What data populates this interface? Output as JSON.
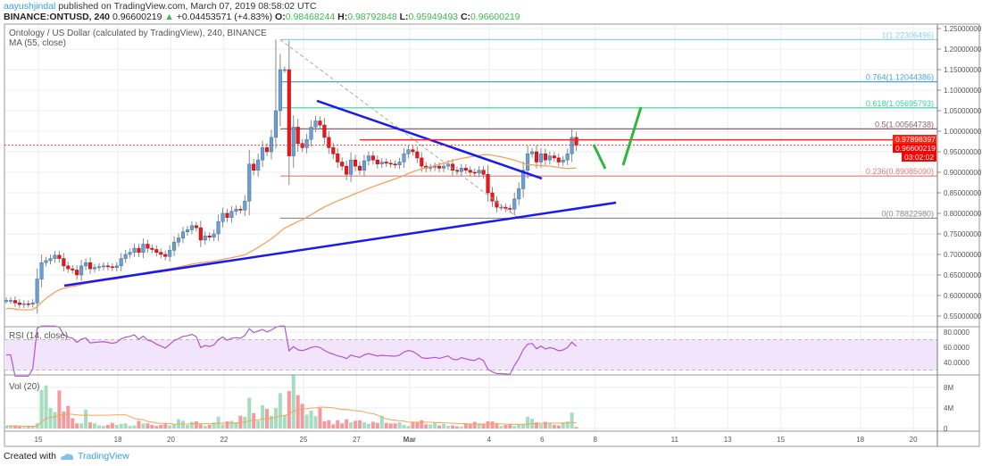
{
  "header": {
    "author": "aayushjindal",
    "published": "published on TradingView.com, March 07, 2019 08:58:02 UTC",
    "symbol": "BINANCE:ONTUSD, 240",
    "last": "0.96600219",
    "change": "+0.04453571 (+4.83%)",
    "o_label": "O:",
    "o": "0.98468244",
    "h_label": "H:",
    "h": "0.98792848",
    "l_label": "L:",
    "l": "0.95949493",
    "c_label": "C:",
    "c": "0.96600219"
  },
  "legend": {
    "title": "Ontology / US Dollar (calculated by TradingView), 240, BINANCE",
    "ma": "MA (55, close)",
    "rsi": "RSI (14, close)",
    "vol": "Vol (20)"
  },
  "price_axis": [
    "1.25000000",
    "1.20000000",
    "1.15000000",
    "1.10000000",
    "1.05000000",
    "1.00000000",
    "0.95000000",
    "0.90000000",
    "0.85000000",
    "0.80000000",
    "0.75000000",
    "0.70000000",
    "0.65000000",
    "0.60000000",
    "0.55000000"
  ],
  "rsi_axis": [
    "80.0000",
    "60.0000",
    "40.0000"
  ],
  "vol_axis": [
    "8M",
    "4M",
    "0"
  ],
  "date_axis": [
    {
      "label": "15",
      "date": "2019-02-15"
    },
    {
      "label": "18",
      "date": "2019-02-18"
    },
    {
      "label": "20",
      "date": "2019-02-20"
    },
    {
      "label": "22",
      "date": "2019-02-22"
    },
    {
      "label": "25",
      "date": "2019-02-25"
    },
    {
      "label": "27",
      "date": "2019-02-27"
    },
    {
      "label": "Mar",
      "date": "2019-03-01"
    },
    {
      "label": "4",
      "date": "2019-03-04"
    },
    {
      "label": "6",
      "date": "2019-03-06"
    },
    {
      "label": "8",
      "date": "2019-03-08"
    },
    {
      "label": "11",
      "date": "2019-03-11"
    },
    {
      "label": "13",
      "date": "2019-03-13"
    },
    {
      "label": "15",
      "date": "2019-03-15"
    },
    {
      "label": "18",
      "date": "2019-03-18"
    },
    {
      "label": "20",
      "date": "2019-03-20"
    }
  ],
  "fib_levels": [
    {
      "label": "1(1.22306496)",
      "price": 1.22306496,
      "color": "#8fd0ee"
    },
    {
      "label": "0.764(1.12044386)",
      "price": 1.12044386,
      "color": "#4aa3d8"
    },
    {
      "label": "0.618(1.05695793)",
      "price": 1.05695793,
      "color": "#3ccf9a"
    },
    {
      "label": "0.5(1.00564738)",
      "price": 1.00564738,
      "color": "#8a5d6e"
    },
    {
      "label": "0.236(0.89085090)",
      "price": 0.8908509,
      "color": "#e27b7b"
    },
    {
      "label": "0(0.78822980)",
      "price": 0.7882298,
      "color": "#8c8c8c"
    }
  ],
  "price_tags": {
    "resistance": "0.97898397",
    "resistance_value": 0.97898397,
    "last": "0.96600219",
    "last_value": 0.96600219,
    "countdown": "03:02:02"
  },
  "colors": {
    "up": "#6b9fd2",
    "down": "#e8191b",
    "ma": "#f4a25b",
    "rsi": "#b256d0",
    "rsi_band": "#f1e4fb",
    "trend": "#1a1aee",
    "arrow": "#2db83d",
    "vol_up": "#a6dcbf",
    "vol_down": "#f29a9c"
  },
  "chart_data": {
    "type": "candlestick",
    "symbol": "BINANCE:ONTUSD",
    "interval": "240",
    "close": [
      0.588,
      0.588,
      0.582,
      0.578,
      0.58,
      0.579,
      0.582,
      0.64,
      0.68,
      0.685,
      0.69,
      0.698,
      0.69,
      0.672,
      0.665,
      0.662,
      0.65,
      0.672,
      0.68,
      0.665,
      0.668,
      0.67,
      0.672,
      0.67,
      0.668,
      0.672,
      0.69,
      0.7,
      0.705,
      0.715,
      0.705,
      0.725,
      0.715,
      0.712,
      0.705,
      0.7,
      0.695,
      0.71,
      0.73,
      0.74,
      0.755,
      0.76,
      0.77,
      0.765,
      0.735,
      0.745,
      0.742,
      0.75,
      0.78,
      0.8,
      0.79,
      0.805,
      0.81,
      0.808,
      0.83,
      0.92,
      0.905,
      0.93,
      0.96,
      0.95,
      0.985,
      1.05,
      1.15,
      1.15,
      0.94,
      1.01,
      0.97,
      0.96,
      0.98,
      1.01,
      1.025,
      1.015,
      0.985,
      0.96,
      0.945,
      0.925,
      0.915,
      0.895,
      0.93,
      0.915,
      0.905,
      0.928,
      0.94,
      0.93,
      0.92,
      0.925,
      0.922,
      0.92,
      0.918,
      0.925,
      0.945,
      0.955,
      0.95,
      0.935,
      0.915,
      0.91,
      0.912,
      0.915,
      0.91,
      0.915,
      0.92,
      0.905,
      0.902,
      0.91,
      0.905,
      0.9,
      0.898,
      0.905,
      0.895,
      0.85,
      0.83,
      0.815,
      0.815,
      0.812,
      0.81,
      0.835,
      0.86,
      0.905,
      0.945,
      0.95,
      0.925,
      0.945,
      0.93,
      0.94,
      0.935,
      0.925,
      0.93,
      0.945,
      0.985,
      0.966
    ],
    "volume_millions": [
      0.5,
      0.5,
      0.6,
      0.4,
      0.3,
      0.3,
      0.4,
      1.0,
      7.5,
      8.4,
      4.0,
      3.2,
      7.4,
      3.3,
      4.4,
      2.0,
      1.0,
      1.0,
      3.7,
      1.2,
      1.0,
      0.6,
      0.5,
      0.7,
      1.1,
      0.7,
      0.9,
      1.0,
      0.5,
      0.6,
      1.5,
      1.0,
      1.0,
      0.7,
      0.5,
      0.7,
      0.9,
      0.6,
      0.8,
      1.8,
      1.5,
      0.7,
      1.3,
      1.4,
      0.8,
      0.5,
      0.7,
      1.2,
      2.3,
      0.8,
      1.4,
      1.5,
      1.2,
      2.5,
      2.3,
      6.0,
      3.0,
      1.5,
      4.5,
      3.8,
      2.5,
      4.0,
      6.9,
      2.6,
      7.3,
      11.0,
      6.5,
      4.8,
      2.7,
      3.5,
      2.4,
      4.0,
      1.4,
      1.6,
      0.8,
      1.6,
      1.0,
      1.8,
      1.2,
      1.5,
      1.6,
      1.2,
      0.9,
      1.3,
      1.1,
      2.5,
      1.1,
      1.0,
      1.0,
      1.2,
      0.7,
      0.5,
      1.2,
      1.2,
      1.6,
      0.8,
      0.8,
      1.1,
      0.6,
      0.9,
      0.5,
      0.6,
      0.4,
      0.4,
      0.9,
      0.8,
      1.3,
      1.0,
      0.8,
      1.4,
      1.4,
      0.9,
      0.5,
      0.7,
      0.8,
      0.5,
      0.8,
      0.9,
      2.3,
      1.9,
      1.2,
      0.8,
      1.3,
      1.0,
      0.7,
      0.6,
      1.2,
      1.4,
      3.1,
      0.3
    ],
    "peak_high": 1.22306496,
    "ylim": [
      0.53,
      1.26
    ],
    "rsi_ylim": [
      22,
      88
    ],
    "rsi_band": [
      30,
      70
    ],
    "vol_ylim": [
      0,
      11
    ]
  },
  "footer": {
    "created": "Created with",
    "brand": "TradingView"
  }
}
